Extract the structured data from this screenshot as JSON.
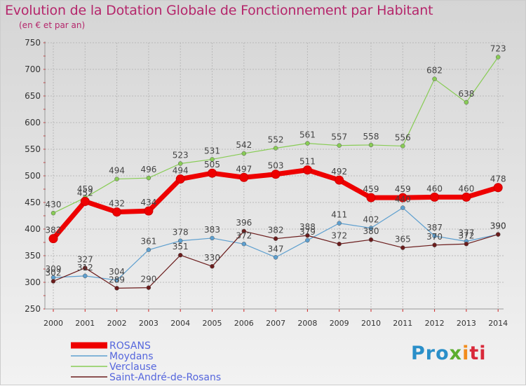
{
  "chart_data": {
    "type": "line",
    "title": "Evolution de la Dotation Globale de Fonctionnement par Habitant",
    "subtitle": "(en € et par an)",
    "xlabel": "",
    "ylabel": "",
    "ylim": [
      250,
      750
    ],
    "yticks": [
      "250",
      "300",
      "350",
      "400",
      "450",
      "500",
      "550",
      "600",
      "650",
      "700",
      "750"
    ],
    "categories": [
      "2000",
      "2001",
      "2002",
      "2003",
      "2004",
      "2005",
      "2006",
      "2007",
      "2008",
      "2009",
      "2010",
      "2011",
      "2012",
      "2013",
      "2014"
    ],
    "series": [
      {
        "name": "ROSANS",
        "color": "#ee0000",
        "values": [
          382,
          452,
          432,
          434,
          494,
          505,
          497,
          503,
          511,
          492,
          459,
          459,
          460,
          460,
          478
        ],
        "labels": [
          "382",
          "452",
          "432",
          "434",
          "494",
          "505",
          "497",
          "503",
          "511",
          "492",
          "459",
          "459",
          "460",
          "460",
          "478"
        ]
      },
      {
        "name": "Moydans",
        "color": "#5d9fcf",
        "values": [
          309,
          312,
          304,
          361,
          378,
          383,
          372,
          347,
          379,
          411,
          402,
          440,
          387,
          377,
          390
        ],
        "labels": [
          "309",
          "312",
          "304",
          "361",
          "378",
          "383",
          "372",
          "347",
          "379",
          "411",
          "402",
          "440",
          "387",
          "377",
          "390"
        ]
      },
      {
        "name": "Verclause",
        "color": "#88cc55",
        "values": [
          430,
          459,
          494,
          496,
          523,
          531,
          542,
          552,
          561,
          557,
          558,
          556,
          682,
          638,
          723
        ],
        "labels": [
          "430",
          "459",
          "494",
          "496",
          "523",
          "531",
          "542",
          "552",
          "561",
          "557",
          "558",
          "556",
          "682",
          "638",
          "723"
        ]
      },
      {
        "name": "Saint-André-de-Rosans",
        "color": "#6b1c1c",
        "values": [
          302,
          327,
          289,
          290,
          351,
          330,
          396,
          382,
          388,
          372,
          380,
          365,
          370,
          372,
          390
        ],
        "labels": [
          "302",
          "327",
          "289",
          "290",
          "351",
          "330",
          "396",
          "382",
          "388",
          "372",
          "380",
          "365",
          "370",
          "372",
          "390"
        ]
      }
    ]
  },
  "logo": {
    "part1": "Pro",
    "part2": "x",
    "part3": "i",
    "part4": "ti"
  }
}
